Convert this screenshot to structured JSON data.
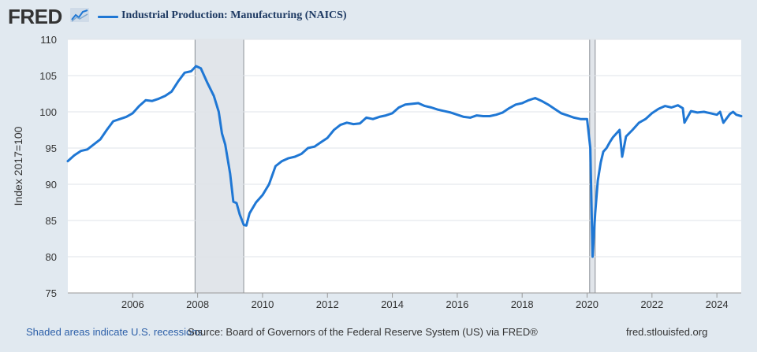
{
  "header": {
    "logo": "FRED",
    "legend_label": "Industrial Production: Manufacturing (NAICS)"
  },
  "footer": {
    "recession_note": "Shaded areas indicate U.S. recessions",
    "source": "Source: Board of Governors of the Federal Reserve System (US) via FRED®",
    "site": "fred.stlouisfed.org"
  },
  "colors": {
    "series": "#1f77d4",
    "plot_bg": "#ffffff",
    "page_bg": "#e1e9f0",
    "recession": "#e1e5ea"
  },
  "chart_data": {
    "type": "line",
    "title": "Industrial Production: Manufacturing (NAICS)",
    "xlabel": "",
    "ylabel": "Index 2017=100",
    "xlim": [
      2004.0,
      2024.75
    ],
    "ylim": [
      75,
      110
    ],
    "yticks": [
      75,
      80,
      85,
      90,
      95,
      100,
      105,
      110
    ],
    "xticks": [
      2006,
      2008,
      2010,
      2012,
      2014,
      2016,
      2018,
      2020,
      2022,
      2024
    ],
    "grid": true,
    "recessions": [
      [
        2007.92,
        2009.42
      ],
      [
        2020.08,
        2020.25
      ]
    ],
    "series": [
      {
        "name": "Industrial Production: Manufacturing (NAICS)",
        "x": [
          2004.0,
          2004.2,
          2004.4,
          2004.6,
          2004.8,
          2005.0,
          2005.2,
          2005.4,
          2005.6,
          2005.8,
          2006.0,
          2006.2,
          2006.4,
          2006.6,
          2006.8,
          2007.0,
          2007.2,
          2007.4,
          2007.6,
          2007.8,
          2007.95,
          2008.1,
          2008.3,
          2008.5,
          2008.65,
          2008.75,
          2008.85,
          2009.0,
          2009.1,
          2009.2,
          2009.3,
          2009.42,
          2009.5,
          2009.6,
          2009.8,
          2010.0,
          2010.2,
          2010.4,
          2010.6,
          2010.8,
          2011.0,
          2011.2,
          2011.4,
          2011.6,
          2011.8,
          2012.0,
          2012.2,
          2012.4,
          2012.6,
          2012.8,
          2013.0,
          2013.2,
          2013.4,
          2013.6,
          2013.8,
          2014.0,
          2014.2,
          2014.4,
          2014.6,
          2014.8,
          2015.0,
          2015.2,
          2015.4,
          2015.6,
          2015.8,
          2016.0,
          2016.2,
          2016.4,
          2016.6,
          2016.8,
          2017.0,
          2017.2,
          2017.4,
          2017.6,
          2017.8,
          2018.0,
          2018.2,
          2018.4,
          2018.6,
          2018.8,
          2019.0,
          2019.2,
          2019.4,
          2019.6,
          2019.8,
          2020.0,
          2020.1,
          2020.17,
          2020.25,
          2020.33,
          2020.42,
          2020.5,
          2020.6,
          2020.7,
          2020.8,
          2021.0,
          2021.08,
          2021.2,
          2021.4,
          2021.6,
          2021.8,
          2022.0,
          2022.2,
          2022.4,
          2022.6,
          2022.8,
          2022.95,
          2023.0,
          2023.2,
          2023.4,
          2023.6,
          2023.8,
          2024.0,
          2024.1,
          2024.2,
          2024.4,
          2024.5,
          2024.6,
          2024.75
        ],
        "values": [
          93.2,
          94.0,
          94.6,
          94.8,
          95.5,
          96.2,
          97.5,
          98.7,
          99.0,
          99.3,
          99.8,
          100.8,
          101.6,
          101.5,
          101.8,
          102.2,
          102.8,
          104.2,
          105.4,
          105.6,
          106.3,
          106.0,
          104.0,
          102.2,
          100.0,
          97.0,
          95.5,
          91.5,
          87.6,
          87.4,
          85.8,
          84.4,
          84.3,
          86.0,
          87.5,
          88.5,
          90.0,
          92.5,
          93.2,
          93.6,
          93.8,
          94.2,
          95.0,
          95.2,
          95.8,
          96.4,
          97.5,
          98.2,
          98.5,
          98.3,
          98.4,
          99.2,
          99.0,
          99.3,
          99.5,
          99.8,
          100.6,
          101.0,
          101.1,
          101.2,
          100.8,
          100.6,
          100.3,
          100.1,
          99.9,
          99.6,
          99.3,
          99.2,
          99.5,
          99.4,
          99.4,
          99.6,
          99.9,
          100.5,
          101.0,
          101.2,
          101.6,
          101.9,
          101.5,
          101.0,
          100.4,
          99.8,
          99.5,
          99.2,
          99.0,
          99.0,
          95.0,
          80.0,
          86.0,
          90.5,
          93.0,
          94.5,
          95.0,
          95.8,
          96.5,
          97.5,
          93.8,
          96.6,
          97.5,
          98.5,
          99.0,
          99.8,
          100.4,
          100.8,
          100.6,
          100.9,
          100.5,
          98.5,
          100.1,
          99.9,
          100.0,
          99.8,
          99.6,
          100.0,
          98.5,
          99.7,
          100.0,
          99.6,
          99.4
        ]
      }
    ]
  }
}
